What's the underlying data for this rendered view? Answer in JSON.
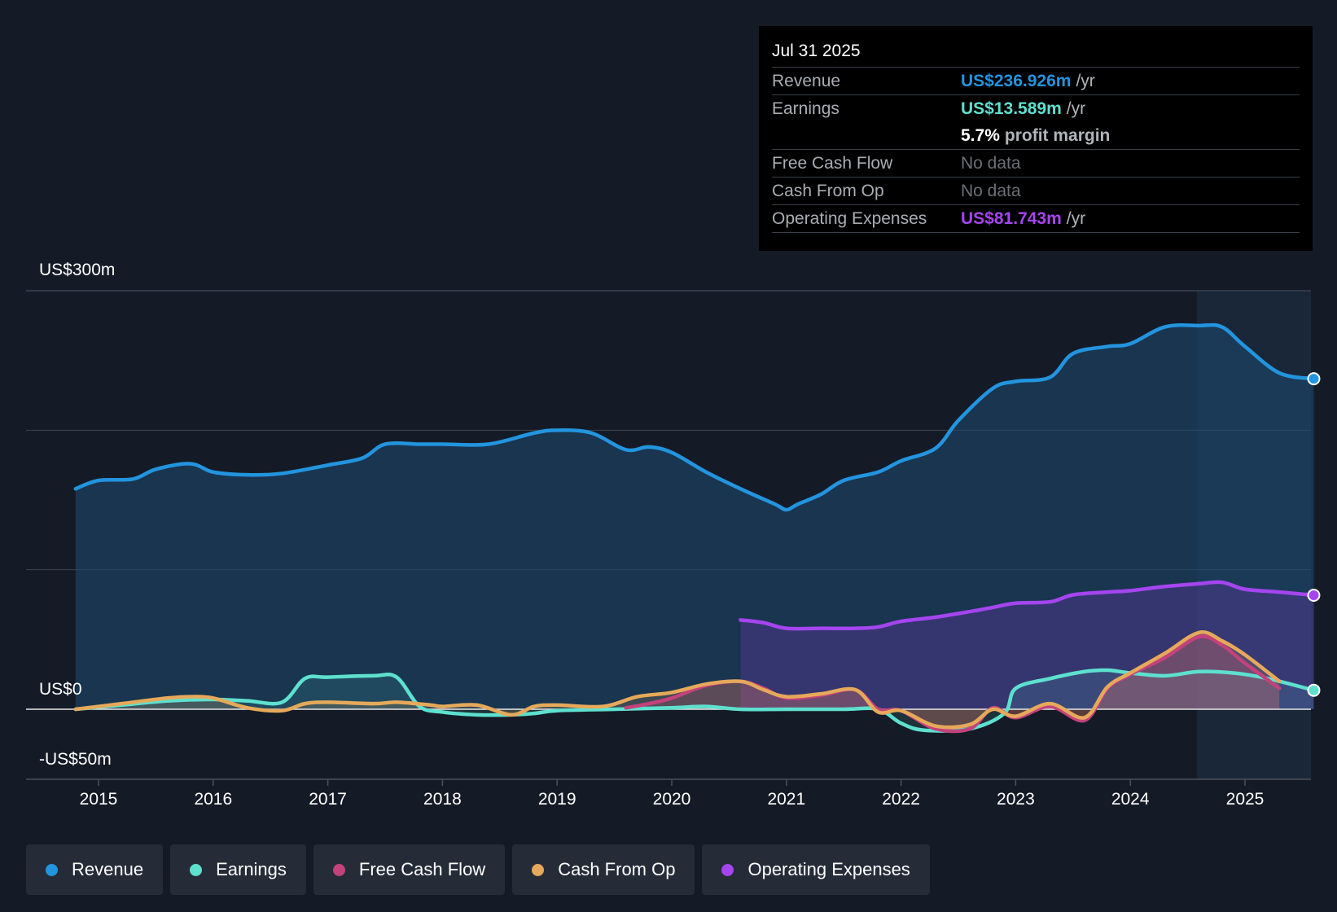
{
  "tooltip": {
    "date": "Jul 31 2025",
    "revenue": {
      "label": "Revenue",
      "value": "US$236.926m",
      "unit": "/yr"
    },
    "earnings": {
      "label": "Earnings",
      "value": "US$13.589m",
      "unit": "/yr"
    },
    "margin": {
      "value": "5.7%",
      "text": "profit margin"
    },
    "fcf": {
      "label": "Free Cash Flow",
      "value": "No data"
    },
    "cfo": {
      "label": "Cash From Op",
      "value": "No data"
    },
    "opex": {
      "label": "Operating Expenses",
      "value": "US$81.743m",
      "unit": "/yr"
    }
  },
  "legend": [
    {
      "label": "Revenue",
      "color": "#2394df"
    },
    {
      "label": "Earnings",
      "color": "#5ee0cf"
    },
    {
      "label": "Free Cash Flow",
      "color": "#c3427c"
    },
    {
      "label": "Cash From Op",
      "color": "#e6a95a"
    },
    {
      "label": "Operating Expenses",
      "color": "#a545f0"
    }
  ],
  "chart_data": {
    "type": "line",
    "title": "",
    "xlabel": "",
    "ylabel": "",
    "y_tick_labels": {
      "top": "US$300m",
      "zero": "US$0",
      "bottom": "-US$50m"
    },
    "ylim": [
      -50,
      300
    ],
    "xlim": [
      2014.8,
      2025.6
    ],
    "x_ticks": [
      2015,
      2016,
      2017,
      2018,
      2019,
      2020,
      2021,
      2022,
      2023,
      2024,
      2025
    ],
    "forecast_shade_start": 2024.58,
    "series": [
      {
        "name": "Revenue",
        "color": "#2394df",
        "x": [
          2014.8,
          2015.0,
          2015.3,
          2015.5,
          2015.8,
          2016.0,
          2016.3,
          2016.6,
          2017.0,
          2017.3,
          2017.5,
          2017.8,
          2018.0,
          2018.4,
          2018.8,
          2019.0,
          2019.3,
          2019.6,
          2019.8,
          2020.0,
          2020.3,
          2020.6,
          2020.9,
          2021.0,
          2021.1,
          2021.3,
          2021.5,
          2021.8,
          2022.0,
          2022.3,
          2022.5,
          2022.8,
          2023.0,
          2023.3,
          2023.5,
          2023.8,
          2024.0,
          2024.3,
          2024.6,
          2024.8,
          2025.0,
          2025.3,
          2025.6
        ],
        "values": [
          158,
          164,
          165,
          172,
          176,
          170,
          168,
          169,
          175,
          180,
          190,
          190,
          190,
          190,
          198,
          200,
          198,
          186,
          188,
          184,
          170,
          158,
          147,
          143,
          147,
          154,
          164,
          170,
          178,
          187,
          207,
          230,
          235,
          238,
          255,
          260,
          262,
          274,
          275,
          274,
          260,
          241,
          236.9
        ]
      },
      {
        "name": "Earnings",
        "color": "#5ee0cf",
        "x": [
          2014.8,
          2015.2,
          2015.6,
          2016.0,
          2016.3,
          2016.6,
          2016.8,
          2017.0,
          2017.4,
          2017.6,
          2017.8,
          2018.0,
          2018.3,
          2018.6,
          2018.8,
          2019.0,
          2019.5,
          2020.0,
          2020.3,
          2020.6,
          2021.0,
          2021.5,
          2021.8,
          2022.0,
          2022.2,
          2022.6,
          2022.9,
          2023.0,
          2023.3,
          2023.6,
          2023.8,
          2024.0,
          2024.3,
          2024.6,
          2024.9,
          2025.2,
          2025.6
        ],
        "values": [
          0,
          3,
          6,
          7,
          6,
          5,
          22,
          23,
          24,
          23,
          2,
          -2,
          -4,
          -4,
          -3,
          -1,
          0,
          1,
          2,
          0,
          0,
          0,
          0,
          -10,
          -15,
          -14,
          -3,
          15,
          22,
          27,
          28,
          26,
          24,
          27,
          26,
          22,
          13.6
        ]
      },
      {
        "name": "Free Cash Flow",
        "color": "#c3427c",
        "x": [
          2019.6,
          2019.8,
          2020.0,
          2020.3,
          2020.6,
          2020.8,
          2021.0,
          2021.3,
          2021.6,
          2021.8,
          2022.0,
          2022.3,
          2022.6,
          2022.8,
          2023.0,
          2023.3,
          2023.6,
          2023.8,
          2024.0,
          2024.3,
          2024.6,
          2024.8,
          2025.0,
          2025.3
        ],
        "values": [
          1,
          4,
          8,
          17,
          20,
          15,
          8,
          10,
          14,
          0,
          -1,
          -14,
          -14,
          1,
          -6,
          2,
          -8,
          15,
          25,
          37,
          52,
          46,
          33,
          15
        ]
      },
      {
        "name": "Cash From Op",
        "color": "#e6a95a",
        "x": [
          2014.8,
          2015.2,
          2015.6,
          2015.8,
          2016.0,
          2016.3,
          2016.6,
          2016.8,
          2017.0,
          2017.4,
          2017.6,
          2017.9,
          2018.0,
          2018.3,
          2018.6,
          2018.8,
          2019.0,
          2019.4,
          2019.7,
          2020.0,
          2020.3,
          2020.6,
          2020.8,
          2021.0,
          2021.3,
          2021.6,
          2021.8,
          2022.0,
          2022.3,
          2022.6,
          2022.8,
          2023.0,
          2023.3,
          2023.6,
          2023.8,
          2024.0,
          2024.3,
          2024.6,
          2024.8,
          2025.0,
          2025.3
        ],
        "values": [
          0,
          4,
          8,
          9,
          8,
          1,
          -1,
          4,
          5,
          4,
          5,
          3,
          2,
          3,
          -4,
          2,
          3,
          2,
          9,
          12,
          18,
          20,
          14,
          9,
          11,
          14,
          -2,
          -1,
          -12,
          -11,
          0,
          -5,
          4,
          -6,
          16,
          26,
          40,
          55,
          49,
          39,
          20
        ]
      },
      {
        "name": "Operating Expenses",
        "color": "#a545f0",
        "x": [
          2020.6,
          2020.8,
          2021.0,
          2021.3,
          2021.6,
          2021.8,
          2022.0,
          2022.3,
          2022.6,
          2022.8,
          2023.0,
          2023.3,
          2023.5,
          2023.8,
          2024.0,
          2024.3,
          2024.6,
          2024.8,
          2025.0,
          2025.3,
          2025.6
        ],
        "values": [
          64,
          62,
          58,
          58,
          58,
          59,
          63,
          66,
          70,
          73,
          76,
          77,
          82,
          84,
          85,
          88,
          90,
          91,
          86,
          84,
          81.7
        ]
      }
    ]
  }
}
